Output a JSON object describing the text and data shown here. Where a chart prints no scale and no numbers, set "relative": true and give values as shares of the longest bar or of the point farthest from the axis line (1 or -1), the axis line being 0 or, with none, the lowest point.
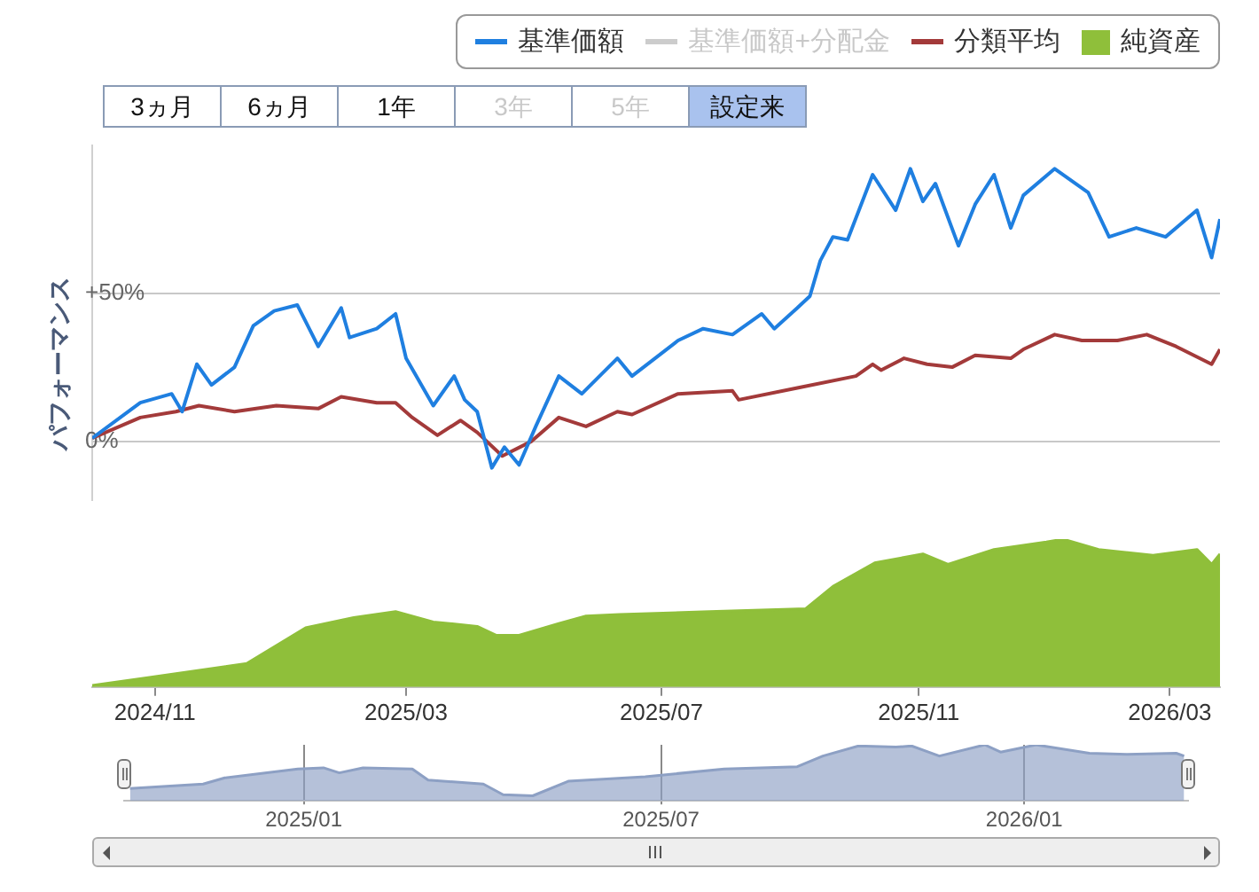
{
  "chart_data": [
    {
      "type": "line",
      "ylabel": "パフォーマンス",
      "xlim": [
        "2024-10-02",
        "2026-03-25"
      ],
      "ylim": [
        -20,
        100
      ],
      "yticks": [
        {
          "value": 0,
          "label": "0%"
        },
        {
          "value": 50,
          "label": "+50%"
        }
      ],
      "grid": "y",
      "legend": "top right",
      "marker": "none",
      "tick_labels": "y",
      "annotations": [
        "3ヵ月",
        "6ヵ月",
        "1年",
        "3年",
        "5年",
        "設定来"
      ],
      "series": [
        {
          "name": "基準価額",
          "color": "#1f7fe0",
          "x": [
            "2024-10-02",
            "2024-10-25",
            "2024-11-09",
            "2024-11-14",
            "2024-11-21",
            "2024-11-28",
            "2024-12-09",
            "2024-12-18",
            "2024-12-28",
            "2025-01-08",
            "2025-01-18",
            "2025-01-29",
            "2025-02-02",
            "2025-02-15",
            "2025-02-24",
            "2025-03-01",
            "2025-03-14",
            "2025-03-24",
            "2025-03-29",
            "2025-04-04",
            "2025-04-11",
            "2025-04-17",
            "2025-04-24",
            "2025-05-02",
            "2025-05-13",
            "2025-05-24",
            "2025-06-10",
            "2025-06-17",
            "2025-06-28",
            "2025-07-09",
            "2025-07-21",
            "2025-08-04",
            "2025-08-18",
            "2025-08-24",
            "2025-09-04",
            "2025-09-10",
            "2025-09-15",
            "2025-09-21",
            "2025-09-28",
            "2025-10-10",
            "2025-10-21",
            "2025-10-28",
            "2025-11-03",
            "2025-11-09",
            "2025-11-20",
            "2025-11-28",
            "2025-12-07",
            "2025-12-15",
            "2025-12-21",
            "2026-01-05",
            "2026-01-21",
            "2026-01-31",
            "2026-02-13",
            "2026-02-27",
            "2026-03-14",
            "2026-03-21",
            "2026-03-25"
          ],
          "values": [
            1,
            13,
            16,
            10,
            26,
            19,
            25,
            39,
            44,
            46,
            32,
            45,
            35,
            38,
            43,
            28,
            12,
            22,
            14,
            10,
            -9,
            -2,
            -8,
            5,
            22,
            16,
            28,
            22,
            28,
            34,
            38,
            36,
            43,
            38,
            45,
            49,
            61,
            69,
            68,
            90,
            78,
            92,
            81,
            87,
            66,
            80,
            90,
            72,
            83,
            92,
            84,
            69,
            72,
            69,
            78,
            62,
            75
          ]
        },
        {
          "name": "基準価額+分配金",
          "color": "#cccccc"
        },
        {
          "name": "分類平均",
          "color": "#a33a3a",
          "x": [
            "2024-10-02",
            "2024-10-25",
            "2024-11-11",
            "2024-11-22",
            "2024-12-09",
            "2024-12-29",
            "2025-01-18",
            "2025-01-29",
            "2025-02-15",
            "2025-02-24",
            "2025-03-04",
            "2025-03-16",
            "2025-03-27",
            "2025-04-04",
            "2025-04-16",
            "2025-04-30",
            "2025-05-13",
            "2025-05-26",
            "2025-06-10",
            "2025-06-17",
            "2025-07-09",
            "2025-08-04",
            "2025-08-07",
            "2025-09-04",
            "2025-10-02",
            "2025-10-10",
            "2025-10-14",
            "2025-10-25",
            "2025-11-05",
            "2025-11-17",
            "2025-11-28",
            "2025-12-15",
            "2025-12-21",
            "2026-01-05",
            "2026-01-18",
            "2026-02-04",
            "2026-02-18",
            "2026-03-04",
            "2026-03-21",
            "2026-03-25"
          ],
          "values": [
            1,
            8,
            10,
            12,
            10,
            12,
            11,
            15,
            13,
            13,
            8,
            2,
            7,
            3,
            -5,
            0,
            8,
            5,
            10,
            9,
            16,
            17,
            14,
            18,
            22,
            26,
            24,
            28,
            26,
            25,
            29,
            28,
            31,
            36,
            34,
            34,
            36,
            32,
            26,
            31
          ]
        }
      ]
    },
    {
      "type": "area",
      "relative": true,
      "xlim": [
        "2024-10-02",
        "2026-03-25"
      ],
      "xticks": [
        {
          "value": "2024-11",
          "label": "2024/11"
        },
        {
          "value": "2025-03",
          "label": "2025/03"
        },
        {
          "value": "2025-07",
          "label": "2025/07"
        },
        {
          "value": "2025-11",
          "label": "2025/11"
        },
        {
          "value": "2026-03",
          "label": "2026/03"
        }
      ],
      "tick_labels": "x",
      "legend": "top right",
      "marker": "none",
      "series": [
        {
          "name": "純資産",
          "color": "#8fbf3a",
          "x": [
            "2024-10-02",
            "2024-11-11",
            "2024-12-15",
            "2025-01-12",
            "2025-02-04",
            "2025-02-24",
            "2025-03-14",
            "2025-04-04",
            "2025-04-13",
            "2025-04-24",
            "2025-05-13",
            "2025-05-26",
            "2025-06-11",
            "2025-07-24",
            "2025-09-08",
            "2025-09-21",
            "2025-10-11",
            "2025-11-03",
            "2025-11-15",
            "2025-12-07",
            "2026-01-01",
            "2026-01-09",
            "2026-01-26",
            "2026-02-21",
            "2026-03-14",
            "2026-03-21",
            "2026-03-25"
          ],
          "values": [
            0.01,
            0.09,
            0.16,
            0.4,
            0.47,
            0.51,
            0.44,
            0.41,
            0.35,
            0.35,
            0.43,
            0.48,
            0.49,
            0.51,
            0.53,
            0.68,
            0.84,
            0.9,
            0.83,
            0.93,
            0.98,
            1,
            0.93,
            0.89,
            0.93,
            0.83,
            0.9
          ]
        }
      ]
    },
    {
      "type": "area",
      "relative": true,
      "xlim": [
        "2024-10-02",
        "2026-03-25"
      ],
      "xticks": [
        {
          "value": "2025-01",
          "label": "2025/01"
        },
        {
          "value": "2025-07",
          "label": "2025/07"
        },
        {
          "value": "2026-01",
          "label": "2026/01"
        }
      ],
      "tick_labels": "x",
      "grid": "x",
      "marker": "none",
      "series": [
        {
          "color": "#8da0c4",
          "x": [
            "2024-10-05",
            "2024-11-11",
            "2024-11-22",
            "2024-12-29",
            "2025-01-11",
            "2025-01-19",
            "2025-01-31",
            "2025-02-25",
            "2025-03-05",
            "2025-04-02",
            "2025-04-12",
            "2025-04-27",
            "2025-05-15",
            "2025-06-23",
            "2025-08-02",
            "2025-09-08",
            "2025-09-21",
            "2025-10-09",
            "2025-10-28",
            "2025-11-05",
            "2025-11-19",
            "2025-12-12",
            "2025-12-20",
            "2026-01-07",
            "2026-02-03",
            "2026-02-22",
            "2026-03-19",
            "2026-03-23"
          ],
          "values": [
            0.22,
            0.3,
            0.41,
            0.57,
            0.59,
            0.5,
            0.59,
            0.57,
            0.37,
            0.3,
            0.11,
            0.09,
            0.35,
            0.43,
            0.57,
            0.61,
            0.8,
            0.98,
            0.96,
            0.98,
            0.8,
            1,
            0.87,
            1,
            0.85,
            0.83,
            0.85,
            0.8
          ]
        }
      ]
    }
  ]
}
